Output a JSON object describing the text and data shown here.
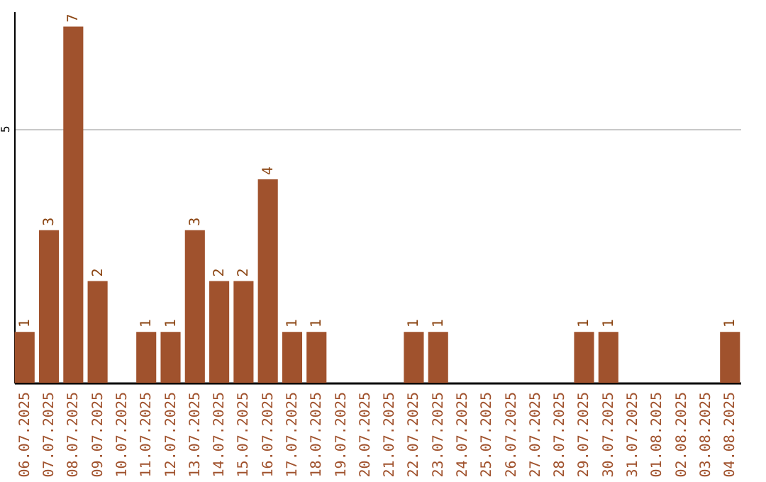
{
  "chart_data": {
    "type": "bar",
    "categories": [
      "06.07.2025",
      "07.07.2025",
      "08.07.2025",
      "09.07.2025",
      "10.07.2025",
      "11.07.2025",
      "12.07.2025",
      "13.07.2025",
      "14.07.2025",
      "15.07.2025",
      "16.07.2025",
      "17.07.2025",
      "18.07.2025",
      "19.07.2025",
      "20.07.2025",
      "21.07.2025",
      "22.07.2025",
      "23.07.2025",
      "24.07.2025",
      "25.07.2025",
      "26.07.2025",
      "27.07.2025",
      "28.07.2025",
      "29.07.2025",
      "30.07.2025",
      "31.07.2025",
      "01.08.2025",
      "02.08.2025",
      "03.08.2025",
      "04.08.2025"
    ],
    "values": [
      1,
      3,
      7,
      2,
      0,
      1,
      1,
      3,
      2,
      2,
      4,
      1,
      1,
      0,
      0,
      0,
      1,
      1,
      0,
      0,
      0,
      0,
      0,
      1,
      1,
      0,
      0,
      0,
      0,
      1
    ],
    "value_labels": [
      "1",
      "3",
      "7",
      "2",
      null,
      "1",
      "1",
      "3",
      "2",
      "2",
      "4",
      "1",
      "1",
      null,
      null,
      null,
      "1",
      "1",
      null,
      null,
      null,
      null,
      null,
      "1",
      "1",
      null,
      null,
      null,
      null,
      "1"
    ],
    "color": "#a0522d",
    "ylim": [
      0,
      7.3
    ],
    "yticks": [
      5
    ],
    "grid": "y"
  }
}
